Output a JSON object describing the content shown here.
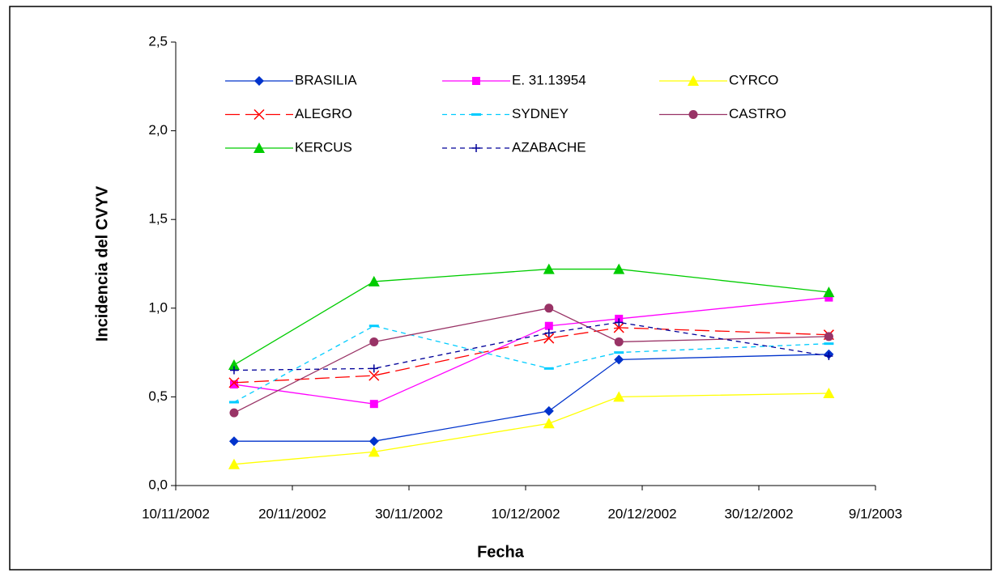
{
  "chart_data": {
    "type": "line",
    "x_label": "Fecha",
    "y_label": "Incidencia del CVYV",
    "x": [
      "15/11/2002",
      "27/11/2002",
      "12/12/2002",
      "18/12/2002",
      "5/1/2003"
    ],
    "xlim": [
      "10/11/2002",
      "9/1/2003"
    ],
    "xticks": [
      "10/11/2002",
      "20/11/2002",
      "30/11/2002",
      "10/12/2002",
      "20/12/2002",
      "30/12/2002",
      "9/1/2003"
    ],
    "ylim": [
      0,
      2.5
    ],
    "yticks": [
      {
        "value": 0,
        "label": "0,0"
      },
      {
        "value": 0.5,
        "label": "0,5"
      },
      {
        "value": 1,
        "label": "1,0"
      },
      {
        "value": 1.5,
        "label": "1,5"
      },
      {
        "value": 2,
        "label": "2,0"
      },
      {
        "value": 2.5,
        "label": "2,5"
      }
    ],
    "grid": false,
    "legend": "top",
    "series": [
      {
        "name": "BRASILIA",
        "color": "#0033cc",
        "marker": "diamond",
        "dash": "solid",
        "values": [
          0.25,
          0.25,
          0.42,
          0.71,
          0.74
        ]
      },
      {
        "name": "E. 31.13954",
        "color": "#ff00ff",
        "marker": "square",
        "dash": "solid",
        "values": [
          0.57,
          0.46,
          0.9,
          0.94,
          1.06
        ]
      },
      {
        "name": "CYRCO",
        "color": "#ffff00",
        "marker": "triangle",
        "dash": "solid",
        "values": [
          0.12,
          0.19,
          0.35,
          0.5,
          0.52
        ]
      },
      {
        "name": "ALEGRO",
        "color": "#ff0000",
        "marker": "x",
        "dash": "long",
        "values": [
          0.58,
          0.62,
          0.83,
          0.89,
          0.85
        ]
      },
      {
        "name": "SYDNEY",
        "color": "#00ccff",
        "marker": "dash",
        "dash": "short",
        "values": [
          0.47,
          0.9,
          0.66,
          0.75,
          0.8
        ]
      },
      {
        "name": "CASTRO",
        "color": "#993366",
        "marker": "circle",
        "dash": "solid",
        "values": [
          0.41,
          0.81,
          1.0,
          0.81,
          0.84
        ]
      },
      {
        "name": "KERCUS",
        "color": "#00cc00",
        "marker": "triangle",
        "dash": "solid",
        "values": [
          0.68,
          1.15,
          1.22,
          1.22,
          1.09
        ]
      },
      {
        "name": "AZABACHE",
        "color": "#000099",
        "marker": "plus",
        "dash": "short",
        "values": [
          0.65,
          0.66,
          0.86,
          0.92,
          0.73
        ]
      }
    ]
  }
}
